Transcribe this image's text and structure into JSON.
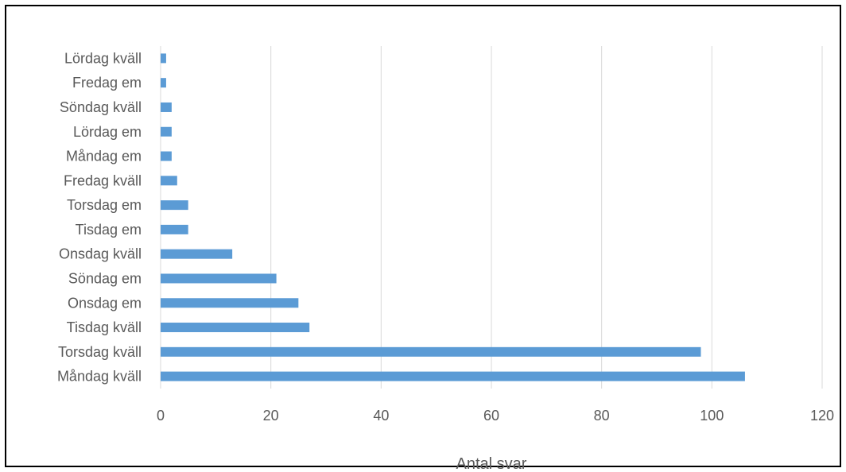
{
  "chart_data": {
    "type": "bar",
    "orientation": "horizontal",
    "categories": [
      "Måndag kväll",
      "Torsdag kväll",
      "Tisdag kväll",
      "Onsdag em",
      "Söndag em",
      "Onsdag kväll",
      "Tisdag em",
      "Torsdag em",
      "Fredag kväll",
      "Måndag em",
      "Lördag em",
      "Söndag kväll",
      "Fredag em",
      "Lördag kväll"
    ],
    "values": [
      106,
      98,
      27,
      25,
      21,
      13,
      5,
      5,
      3,
      2,
      2,
      2,
      1,
      1
    ],
    "title": "",
    "xlabel": "Antal svar",
    "ylabel": "",
    "xlim": [
      0,
      120
    ],
    "xticks": [
      0,
      20,
      40,
      60,
      80,
      100,
      120
    ],
    "grid": "vertical",
    "legend": "none",
    "colors": {
      "bar": "#5B9BD5",
      "grid": "#D9D9D9",
      "text": "#595959",
      "frame": "#000000"
    }
  }
}
